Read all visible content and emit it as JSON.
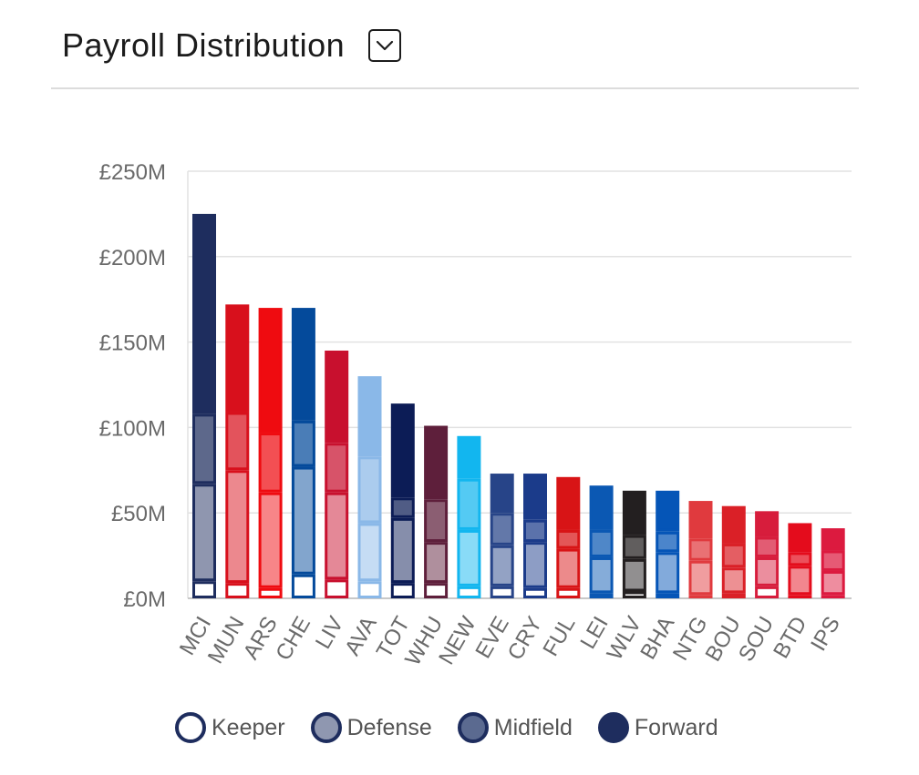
{
  "header": {
    "title": "Payroll Distribution",
    "dropdown_icon": "chevron-down-icon"
  },
  "chart_data": {
    "type": "bar",
    "stacked": true,
    "title": "Payroll Distribution",
    "ylim": [
      0,
      250
    ],
    "yticks": [
      0,
      50,
      100,
      150,
      200,
      250
    ],
    "ytick_labels": [
      "£0M",
      "£50M",
      "£100M",
      "£150M",
      "£200M",
      "£250M"
    ],
    "categories": [
      "MCI",
      "MUN",
      "ARS",
      "CHE",
      "LIV",
      "AVA",
      "TOT",
      "WHU",
      "NEW",
      "EVE",
      "CRY",
      "FUL",
      "LEI",
      "WLV",
      "BHA",
      "NTG",
      "BOU",
      "SOU",
      "BTD",
      "IPS"
    ],
    "team_colors": [
      "#1e2d5e",
      "#d8101c",
      "#ef0b10",
      "#044a9b",
      "#c8102e",
      "#8ab8e8",
      "#0c1c56",
      "#5e1f3b",
      "#12b6ef",
      "#274488",
      "#1b3b8a",
      "#d81416",
      "#0b58b3",
      "#231f20",
      "#0555b7",
      "#e03a3e",
      "#da2027",
      "#d71d3c",
      "#e40c1c",
      "#dc1a3f"
    ],
    "series": [
      {
        "name": "Keeper",
        "values": [
          10,
          9,
          6,
          14,
          11,
          10,
          9,
          9,
          7,
          7,
          6,
          6,
          3,
          4,
          3,
          2,
          3,
          7,
          2,
          2
        ]
      },
      {
        "name": "Defense",
        "values": [
          57,
          66,
          56,
          63,
          51,
          34,
          38,
          24,
          33,
          24,
          27,
          23,
          21,
          19,
          24,
          20,
          15,
          17,
          17,
          14
        ]
      },
      {
        "name": "Midfield",
        "values": [
          41,
          34,
          35,
          27,
          29,
          39,
          12,
          25,
          30,
          19,
          13,
          11,
          16,
          14,
          12,
          13,
          14,
          12,
          8,
          12
        ]
      },
      {
        "name": "Forward",
        "values": [
          117,
          63,
          73,
          66,
          54,
          47,
          55,
          43,
          25,
          23,
          27,
          31,
          26,
          26,
          24,
          22,
          22,
          15,
          17,
          13
        ]
      }
    ],
    "legend": [
      "Keeper",
      "Defense",
      "Midfield",
      "Forward"
    ],
    "legend_position": "bottom",
    "grid": true
  },
  "legend_items": [
    {
      "label": "Keeper",
      "fill": "#ffffff"
    },
    {
      "label": "Defense",
      "fill": "#8f97b0"
    },
    {
      "label": "Midfield",
      "fill": "#5b6a90"
    },
    {
      "label": "Forward",
      "fill": "#1e2d5e"
    }
  ]
}
